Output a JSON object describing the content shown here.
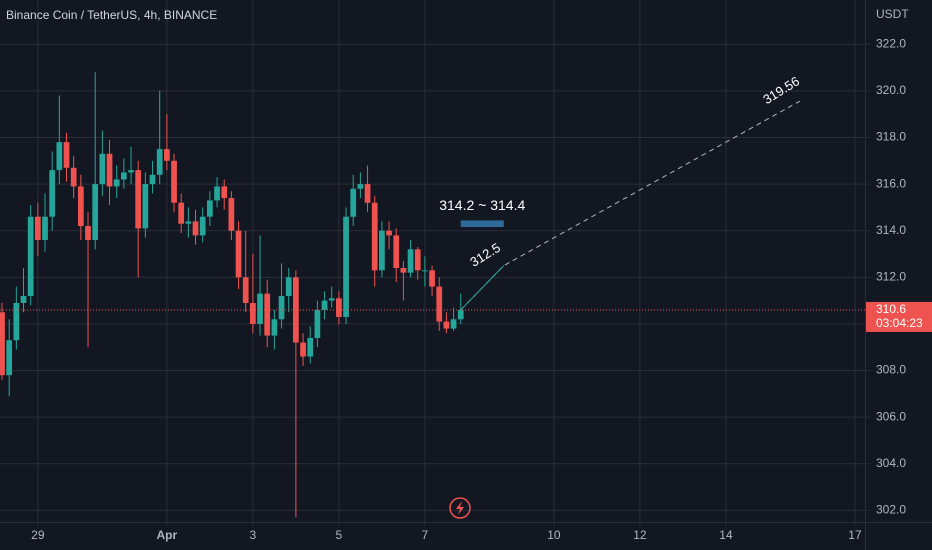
{
  "chart_data": {
    "type": "candlestick",
    "title": "Binance Coin / TetherUS, 4h, BINANCE",
    "y_unit": "USDT",
    "x": [
      0,
      1,
      2,
      3,
      4,
      5,
      6,
      7,
      8,
      9,
      10,
      11,
      12,
      13,
      14,
      15,
      16,
      17,
      18,
      19,
      20,
      21,
      22,
      23,
      24,
      25,
      26,
      27,
      28,
      29,
      30,
      31,
      32,
      33,
      34,
      35,
      36,
      37,
      38,
      39,
      40,
      41,
      42,
      43,
      44,
      45,
      46,
      47,
      48,
      49,
      50,
      51,
      52,
      53,
      54,
      55,
      56,
      57,
      58,
      59,
      60,
      61,
      62,
      63,
      64
    ],
    "open": [
      310.5,
      307.8,
      309.3,
      310.9,
      311.2,
      314.6,
      313.6,
      314.6,
      316.6,
      317.8,
      316.7,
      315.9,
      314.2,
      313.6,
      316.0,
      317.3,
      315.9,
      316.2,
      316.5,
      316.6,
      314.1,
      316.0,
      316.4,
      317.5,
      317.0,
      315.2,
      314.3,
      314.4,
      313.8,
      314.6,
      315.3,
      315.9,
      315.4,
      314.0,
      312.0,
      310.9,
      310.0,
      311.3,
      309.5,
      310.2,
      311.2,
      312.0,
      309.2,
      308.6,
      309.4,
      310.6,
      311.0,
      311.1,
      310.3,
      314.6,
      315.8,
      316.0,
      315.2,
      312.3,
      314.0,
      313.8,
      312.4,
      312.2,
      313.2,
      312.3,
      312.3,
      311.6,
      310.1,
      309.8,
      310.2
    ],
    "high": [
      310.9,
      310.2,
      311.6,
      312.4,
      315.1,
      315.2,
      315.6,
      317.4,
      319.8,
      318.2,
      317.2,
      316.4,
      314.8,
      320.8,
      318.3,
      317.9,
      316.8,
      317.1,
      317.6,
      317.0,
      316.5,
      317.0,
      320.0,
      319.0,
      317.3,
      315.6,
      315.0,
      314.9,
      315.0,
      315.7,
      316.3,
      316.2,
      315.7,
      314.4,
      314.0,
      313.0,
      313.8,
      311.9,
      310.6,
      312.6,
      312.4,
      312.3,
      309.6,
      309.9,
      311.0,
      311.4,
      311.6,
      311.4,
      315.0,
      316.4,
      316.5,
      316.8,
      315.5,
      314.4,
      314.4,
      314.1,
      312.7,
      313.6,
      313.3,
      312.9,
      312.5,
      312.0,
      310.5,
      310.7,
      311.3
    ],
    "low": [
      307.6,
      306.9,
      308.9,
      310.5,
      310.8,
      312.9,
      313.1,
      314.0,
      316.0,
      316.1,
      315.4,
      313.6,
      309.0,
      313.2,
      315.5,
      315.1,
      315.4,
      315.8,
      316.0,
      312.0,
      313.7,
      315.6,
      316.0,
      316.6,
      314.8,
      313.9,
      313.7,
      313.4,
      313.5,
      314.2,
      315.0,
      314.9,
      313.6,
      311.5,
      310.5,
      309.6,
      309.5,
      309.0,
      308.9,
      309.8,
      310.5,
      301.7,
      308.2,
      308.3,
      309.0,
      310.2,
      310.7,
      310.0,
      310.0,
      314.2,
      315.4,
      314.8,
      311.6,
      312.0,
      313.2,
      311.8,
      311.0,
      312.0,
      311.9,
      311.6,
      311.2,
      309.7,
      309.6,
      309.7,
      310.0
    ],
    "close": [
      307.8,
      309.3,
      310.9,
      311.2,
      314.6,
      313.6,
      314.6,
      316.6,
      317.8,
      316.7,
      315.9,
      314.2,
      313.6,
      316.0,
      317.3,
      315.9,
      316.2,
      316.5,
      316.6,
      314.1,
      316.0,
      316.4,
      317.5,
      317.0,
      315.2,
      314.3,
      314.4,
      313.8,
      314.6,
      315.3,
      315.9,
      315.4,
      314.0,
      312.0,
      310.9,
      310.0,
      311.3,
      309.5,
      310.2,
      311.2,
      312.0,
      309.2,
      308.6,
      309.4,
      310.6,
      311.0,
      311.1,
      310.3,
      314.6,
      315.8,
      316.0,
      315.2,
      312.3,
      314.0,
      313.8,
      312.4,
      312.2,
      313.2,
      312.3,
      312.3,
      311.6,
      310.1,
      309.8,
      310.2,
      310.6
    ],
    "up_color": "#26a69a",
    "down_color": "#ef5350",
    "xlim": [
      -0.28,
      120.4
    ],
    "xticks": [
      {
        "value": 5,
        "label": "29"
      },
      {
        "value": 23,
        "label": "Apr"
      },
      {
        "value": 35,
        "label": "3"
      },
      {
        "value": 47,
        "label": "5"
      },
      {
        "value": 59,
        "label": "7"
      },
      {
        "value": 77,
        "label": "10"
      },
      {
        "value": 89,
        "label": "12"
      },
      {
        "value": 101,
        "label": "14"
      },
      {
        "value": 119,
        "label": "17"
      }
    ],
    "ylim": [
      301.5,
      323.9
    ],
    "yticks": [
      {
        "value": 302,
        "label": "302.0"
      },
      {
        "value": 304,
        "label": "304.0"
      },
      {
        "value": 306,
        "label": "306.0"
      },
      {
        "value": 308,
        "label": "308.0"
      },
      {
        "value": 310,
        "label": "310.0"
      },
      {
        "value": 312,
        "label": "312.0"
      },
      {
        "value": 314,
        "label": "314.0"
      },
      {
        "value": 316,
        "label": "316.0"
      },
      {
        "value": 318,
        "label": "318.0"
      },
      {
        "value": 320,
        "label": "320.0"
      },
      {
        "value": 322,
        "label": "322.0"
      }
    ],
    "grid": true,
    "last_price": 310.6,
    "countdown": "03:04:23",
    "range": {
      "low": 314.2,
      "high": 314.4,
      "label": "314.2 ~ 314.4",
      "x": [
        64,
        70
      ]
    },
    "projection": {
      "x": [
        64,
        70,
        111.3
      ],
      "y": [
        310.6,
        312.5,
        319.56
      ],
      "color": "#b2b5be"
    }
  }
}
